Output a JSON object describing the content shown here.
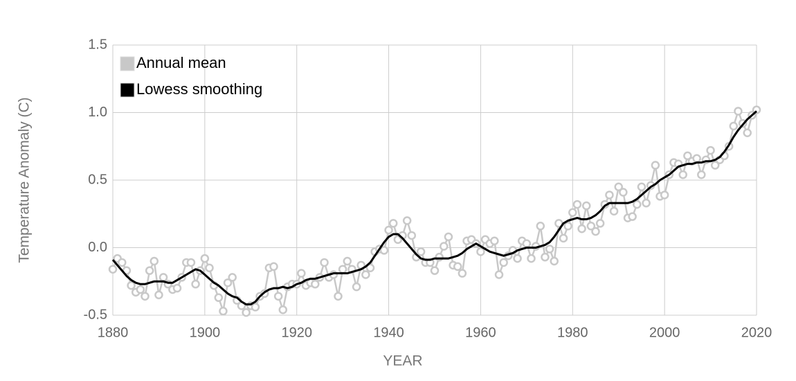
{
  "chart_data": {
    "type": "line",
    "xlabel": "YEAR",
    "ylabel": "Temperature Anomaly (C)",
    "x": [
      1880,
      1881,
      1882,
      1883,
      1884,
      1885,
      1886,
      1887,
      1888,
      1889,
      1890,
      1891,
      1892,
      1893,
      1894,
      1895,
      1896,
      1897,
      1898,
      1899,
      1900,
      1901,
      1902,
      1903,
      1904,
      1905,
      1906,
      1907,
      1908,
      1909,
      1910,
      1911,
      1912,
      1913,
      1914,
      1915,
      1916,
      1917,
      1918,
      1919,
      1920,
      1921,
      1922,
      1923,
      1924,
      1925,
      1926,
      1927,
      1928,
      1929,
      1930,
      1931,
      1932,
      1933,
      1934,
      1935,
      1936,
      1937,
      1938,
      1939,
      1940,
      1941,
      1942,
      1943,
      1944,
      1945,
      1946,
      1947,
      1948,
      1949,
      1950,
      1951,
      1952,
      1953,
      1954,
      1955,
      1956,
      1957,
      1958,
      1959,
      1960,
      1961,
      1962,
      1963,
      1964,
      1965,
      1966,
      1967,
      1968,
      1969,
      1970,
      1971,
      1972,
      1973,
      1974,
      1975,
      1976,
      1977,
      1978,
      1979,
      1980,
      1981,
      1982,
      1983,
      1984,
      1985,
      1986,
      1987,
      1988,
      1989,
      1990,
      1991,
      1992,
      1993,
      1994,
      1995,
      1996,
      1997,
      1998,
      1999,
      2000,
      2001,
      2002,
      2003,
      2004,
      2005,
      2006,
      2007,
      2008,
      2009,
      2010,
      2011,
      2012,
      2013,
      2014,
      2015,
      2016,
      2017,
      2018,
      2019,
      2020
    ],
    "series": [
      {
        "name": "Annual mean",
        "color": "#c8c8c8",
        "markers": true,
        "values": [
          -0.16,
          -0.08,
          -0.11,
          -0.17,
          -0.28,
          -0.33,
          -0.31,
          -0.36,
          -0.17,
          -0.1,
          -0.35,
          -0.22,
          -0.27,
          -0.31,
          -0.3,
          -0.22,
          -0.11,
          -0.11,
          -0.27,
          -0.17,
          -0.08,
          -0.15,
          -0.28,
          -0.37,
          -0.47,
          -0.26,
          -0.22,
          -0.39,
          -0.43,
          -0.48,
          -0.43,
          -0.44,
          -0.36,
          -0.34,
          -0.15,
          -0.14,
          -0.36,
          -0.46,
          -0.29,
          -0.27,
          -0.27,
          -0.19,
          -0.28,
          -0.26,
          -0.27,
          -0.22,
          -0.11,
          -0.22,
          -0.2,
          -0.36,
          -0.16,
          -0.1,
          -0.16,
          -0.29,
          -0.13,
          -0.2,
          -0.15,
          -0.03,
          -0.01,
          -0.02,
          0.13,
          0.18,
          0.06,
          0.09,
          0.2,
          0.09,
          -0.07,
          -0.03,
          -0.11,
          -0.11,
          -0.17,
          -0.07,
          0.01,
          0.08,
          -0.13,
          -0.14,
          -0.19,
          0.05,
          0.06,
          0.03,
          -0.03,
          0.06,
          0.03,
          0.05,
          -0.2,
          -0.11,
          -0.06,
          -0.02,
          -0.08,
          0.05,
          0.03,
          -0.08,
          0.01,
          0.16,
          -0.07,
          -0.01,
          -0.1,
          0.18,
          0.07,
          0.16,
          0.26,
          0.32,
          0.14,
          0.31,
          0.16,
          0.12,
          0.18,
          0.32,
          0.39,
          0.27,
          0.45,
          0.41,
          0.22,
          0.23,
          0.32,
          0.45,
          0.33,
          0.46,
          0.61,
          0.38,
          0.39,
          0.54,
          0.63,
          0.62,
          0.54,
          0.68,
          0.64,
          0.66,
          0.54,
          0.65,
          0.72,
          0.61,
          0.65,
          0.68,
          0.75,
          0.9,
          1.01,
          0.92,
          0.85,
          0.98,
          1.02
        ]
      },
      {
        "name": "Lowess smoothing",
        "color": "#000000",
        "markers": false,
        "values": [
          -0.09,
          -0.13,
          -0.17,
          -0.21,
          -0.24,
          -0.26,
          -0.27,
          -0.27,
          -0.26,
          -0.25,
          -0.25,
          -0.25,
          -0.26,
          -0.26,
          -0.24,
          -0.22,
          -0.2,
          -0.18,
          -0.16,
          -0.17,
          -0.2,
          -0.23,
          -0.26,
          -0.28,
          -0.31,
          -0.34,
          -0.36,
          -0.37,
          -0.4,
          -0.42,
          -0.42,
          -0.4,
          -0.36,
          -0.33,
          -0.31,
          -0.3,
          -0.3,
          -0.29,
          -0.3,
          -0.29,
          -0.27,
          -0.26,
          -0.24,
          -0.23,
          -0.23,
          -0.22,
          -0.21,
          -0.2,
          -0.19,
          -0.19,
          -0.19,
          -0.19,
          -0.18,
          -0.17,
          -0.16,
          -0.14,
          -0.11,
          -0.06,
          -0.01,
          0.04,
          0.08,
          0.1,
          0.1,
          0.07,
          0.03,
          -0.01,
          -0.05,
          -0.08,
          -0.09,
          -0.09,
          -0.08,
          -0.08,
          -0.08,
          -0.08,
          -0.07,
          -0.06,
          -0.04,
          -0.01,
          0.01,
          0.03,
          0.01,
          -0.01,
          -0.03,
          -0.04,
          -0.05,
          -0.06,
          -0.05,
          -0.04,
          -0.02,
          -0.01,
          0.0,
          0.0,
          0.0,
          0.01,
          0.02,
          0.04,
          0.08,
          0.13,
          0.18,
          0.2,
          0.21,
          0.22,
          0.21,
          0.21,
          0.22,
          0.24,
          0.27,
          0.31,
          0.33,
          0.33,
          0.33,
          0.33,
          0.33,
          0.34,
          0.36,
          0.39,
          0.42,
          0.45,
          0.47,
          0.5,
          0.52,
          0.54,
          0.57,
          0.6,
          0.61,
          0.62,
          0.62,
          0.63,
          0.63,
          0.64,
          0.64,
          0.65,
          0.67,
          0.71,
          0.76,
          0.82,
          0.87,
          0.91,
          0.95,
          0.98,
          1.01
        ]
      }
    ],
    "xlim": [
      1880,
      2020
    ],
    "xticks": [
      1880,
      1900,
      1920,
      1940,
      1960,
      1980,
      2000,
      2020
    ],
    "ylim": [
      -0.5,
      1.5
    ],
    "yticks": [
      -0.5,
      {
        "value": 0,
        "label": "0.0"
      },
      0.5,
      {
        "value": 1,
        "label": "1.0"
      },
      1.5
    ],
    "grid": true,
    "legend": "top-left"
  }
}
